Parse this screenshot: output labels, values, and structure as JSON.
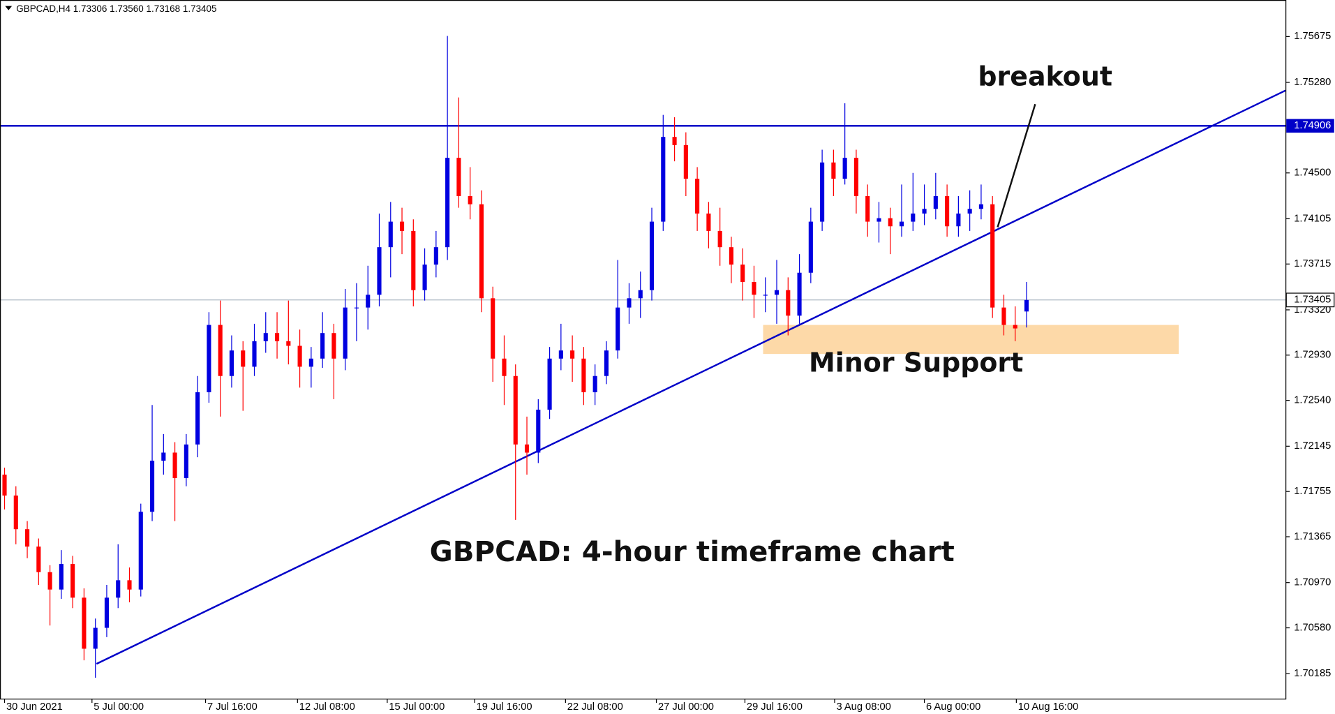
{
  "chart_data": {
    "type": "candlestick",
    "header": "GBPCAD,H4  1.73306 1.73560 1.73168 1.73405",
    "up_color": "#0000e0",
    "down_color": "#ff0000",
    "xlim": [
      -0.4,
      112.8
    ],
    "xticks": [
      {
        "value": 0,
        "label": "30 Jun 2021"
      },
      {
        "value": 7.7,
        "label": "5 Jul 00:00"
      },
      {
        "value": 17.7,
        "label": "7 Jul 16:00"
      },
      {
        "value": 25.8,
        "label": "12 Jul 08:00"
      },
      {
        "value": 33.7,
        "label": "15 Jul 00:00"
      },
      {
        "value": 41.4,
        "label": "19 Jul 16:00"
      },
      {
        "value": 49.4,
        "label": "22 Jul 08:00"
      },
      {
        "value": 57.4,
        "label": "27 Jul 00:00"
      },
      {
        "value": 65.2,
        "label": "29 Jul 16:00"
      },
      {
        "value": 73.1,
        "label": "3 Aug 08:00"
      },
      {
        "value": 81,
        "label": "6 Aug 00:00"
      },
      {
        "value": 89.1,
        "label": "10 Aug 16:00"
      }
    ],
    "ylim": [
      1.6997,
      1.7599
    ],
    "yticks": [
      1.75675,
      {
        "value": 1.7528,
        "label": "1.75280"
      },
      {
        "value": 1.745,
        "label": "1.74500"
      },
      1.74105,
      1.73715,
      {
        "value": 1.7332,
        "label": "1.73320"
      },
      {
        "value": 1.7293,
        "label": "1.72930"
      },
      {
        "value": 1.7254,
        "label": "1.72540"
      },
      1.72145,
      1.71755,
      1.71365,
      {
        "value": 1.7097,
        "label": "1.70970"
      },
      {
        "value": 1.7058,
        "label": "1.70580"
      },
      1.70185
    ],
    "resistance": {
      "value": 1.74906,
      "color": "#0000c8"
    },
    "current_price": 1.73405,
    "trendline": {
      "points": [
        [
          8.1,
          1.7027
        ],
        [
          112.8,
          1.7521
        ]
      ],
      "color": "#0000c8"
    },
    "zone": {
      "x": [
        66.8,
        103.4
      ],
      "y": [
        1.7294,
        1.7319
      ],
      "color": "#fdd9a8"
    },
    "annotations": [
      "breakout",
      "Minor Support",
      "GBPCAD: 4-hour timeframe chart"
    ],
    "ohlc": [
      [
        1.719,
        1.7196,
        1.716,
        1.7172
      ],
      [
        1.7172,
        1.718,
        1.713,
        1.7143
      ],
      [
        1.7143,
        1.715,
        1.7118,
        1.7128
      ],
      [
        1.7128,
        1.7135,
        1.7095,
        1.7106
      ],
      [
        1.7106,
        1.7112,
        1.706,
        1.7091
      ],
      [
        1.7091,
        1.7125,
        1.7083,
        1.7113
      ],
      [
        1.7113,
        1.712,
        1.7075,
        1.7084
      ],
      [
        1.7084,
        1.7092,
        1.703,
        1.704
      ],
      [
        1.704,
        1.7066,
        1.7015,
        1.7058
      ],
      [
        1.7058,
        1.7095,
        1.705,
        1.7084
      ],
      [
        1.7084,
        1.713,
        1.7075,
        1.7099
      ],
      [
        1.7099,
        1.711,
        1.708,
        1.7091
      ],
      [
        1.7091,
        1.7165,
        1.7085,
        1.7158
      ],
      [
        1.7158,
        1.725,
        1.715,
        1.7202
      ],
      [
        1.7202,
        1.7225,
        1.719,
        1.7209
      ],
      [
        1.7209,
        1.7218,
        1.715,
        1.7187
      ],
      [
        1.7187,
        1.7225,
        1.718,
        1.7216
      ],
      [
        1.7216,
        1.7275,
        1.7205,
        1.7261
      ],
      [
        1.7261,
        1.733,
        1.7252,
        1.7319
      ],
      [
        1.7319,
        1.734,
        1.724,
        1.7275
      ],
      [
        1.7275,
        1.731,
        1.7265,
        1.7297
      ],
      [
        1.7297,
        1.7305,
        1.7245,
        1.7283
      ],
      [
        1.7283,
        1.732,
        1.7275,
        1.7305
      ],
      [
        1.7305,
        1.733,
        1.7295,
        1.7312
      ],
      [
        1.7312,
        1.733,
        1.729,
        1.7305
      ],
      [
        1.7305,
        1.734,
        1.7285,
        1.7301
      ],
      [
        1.7301,
        1.7315,
        1.7265,
        1.7283
      ],
      [
        1.7283,
        1.73,
        1.7265,
        1.729
      ],
      [
        1.729,
        1.733,
        1.7282,
        1.7312
      ],
      [
        1.7312,
        1.732,
        1.7255,
        1.729
      ],
      [
        1.729,
        1.735,
        1.728,
        1.7334
      ],
      [
        1.7334,
        1.7355,
        1.7305,
        1.7334
      ],
      [
        1.7334,
        1.737,
        1.7315,
        1.7345
      ],
      [
        1.7345,
        1.7415,
        1.7335,
        1.7386
      ],
      [
        1.7386,
        1.7425,
        1.736,
        1.7408
      ],
      [
        1.7408,
        1.742,
        1.738,
        1.74
      ],
      [
        1.74,
        1.741,
        1.7335,
        1.7349
      ],
      [
        1.7349,
        1.7385,
        1.734,
        1.7371
      ],
      [
        1.7371,
        1.74,
        1.736,
        1.7386
      ],
      [
        1.7386,
        1.7568,
        1.7375,
        1.7463
      ],
      [
        1.7463,
        1.7515,
        1.742,
        1.743
      ],
      [
        1.743,
        1.7455,
        1.741,
        1.7423
      ],
      [
        1.7423,
        1.7435,
        1.733,
        1.7342
      ],
      [
        1.7342,
        1.7352,
        1.727,
        1.729
      ],
      [
        1.729,
        1.731,
        1.725,
        1.7275
      ],
      [
        1.7275,
        1.7285,
        1.7151,
        1.7216
      ],
      [
        1.7216,
        1.724,
        1.719,
        1.7209
      ],
      [
        1.7209,
        1.7255,
        1.72,
        1.7246
      ],
      [
        1.7246,
        1.73,
        1.7238,
        1.729
      ],
      [
        1.729,
        1.732,
        1.728,
        1.7297
      ],
      [
        1.7297,
        1.731,
        1.727,
        1.729
      ],
      [
        1.729,
        1.73,
        1.725,
        1.7261
      ],
      [
        1.7261,
        1.7285,
        1.725,
        1.7275
      ],
      [
        1.7275,
        1.7305,
        1.7268,
        1.7297
      ],
      [
        1.7297,
        1.7375,
        1.729,
        1.7334
      ],
      [
        1.7334,
        1.7355,
        1.732,
        1.7342
      ],
      [
        1.7342,
        1.7365,
        1.7325,
        1.7349
      ],
      [
        1.7349,
        1.742,
        1.734,
        1.7408
      ],
      [
        1.7408,
        1.75,
        1.74,
        1.7481
      ],
      [
        1.7481,
        1.7498,
        1.746,
        1.7474
      ],
      [
        1.7474,
        1.7485,
        1.743,
        1.7445
      ],
      [
        1.7445,
        1.7455,
        1.74,
        1.7415
      ],
      [
        1.7415,
        1.7425,
        1.7385,
        1.74
      ],
      [
        1.74,
        1.742,
        1.737,
        1.7386
      ],
      [
        1.7386,
        1.7395,
        1.7355,
        1.7371
      ],
      [
        1.7371,
        1.7385,
        1.734,
        1.7356
      ],
      [
        1.7356,
        1.737,
        1.7325,
        1.7345
      ],
      [
        1.7345,
        1.736,
        1.733,
        1.7345
      ],
      [
        1.7345,
        1.7375,
        1.732,
        1.7349
      ],
      [
        1.7349,
        1.736,
        1.731,
        1.7327
      ],
      [
        1.7327,
        1.738,
        1.732,
        1.7364
      ],
      [
        1.7364,
        1.742,
        1.7355,
        1.7408
      ],
      [
        1.7408,
        1.747,
        1.74,
        1.7459
      ],
      [
        1.7459,
        1.747,
        1.743,
        1.7445
      ],
      [
        1.7445,
        1.751,
        1.744,
        1.7463
      ],
      [
        1.7463,
        1.747,
        1.7415,
        1.743
      ],
      [
        1.743,
        1.744,
        1.7395,
        1.7408
      ],
      [
        1.7408,
        1.7425,
        1.739,
        1.7411
      ],
      [
        1.7411,
        1.742,
        1.738,
        1.7404
      ],
      [
        1.7404,
        1.744,
        1.7395,
        1.7408
      ],
      [
        1.7408,
        1.745,
        1.74,
        1.7415
      ],
      [
        1.7415,
        1.744,
        1.7405,
        1.7419
      ],
      [
        1.7419,
        1.745,
        1.741,
        1.743
      ],
      [
        1.743,
        1.744,
        1.7395,
        1.7404
      ],
      [
        1.7404,
        1.743,
        1.7395,
        1.7415
      ],
      [
        1.7415,
        1.7435,
        1.74,
        1.7419
      ],
      [
        1.7419,
        1.744,
        1.741,
        1.7423
      ],
      [
        1.7423,
        1.743,
        1.7325,
        1.7334
      ],
      [
        1.7334,
        1.7345,
        1.731,
        1.7319
      ],
      [
        1.7319,
        1.7335,
        1.7305,
        1.7316
      ],
      [
        1.73306,
        1.7356,
        1.73168,
        1.73405
      ]
    ]
  }
}
